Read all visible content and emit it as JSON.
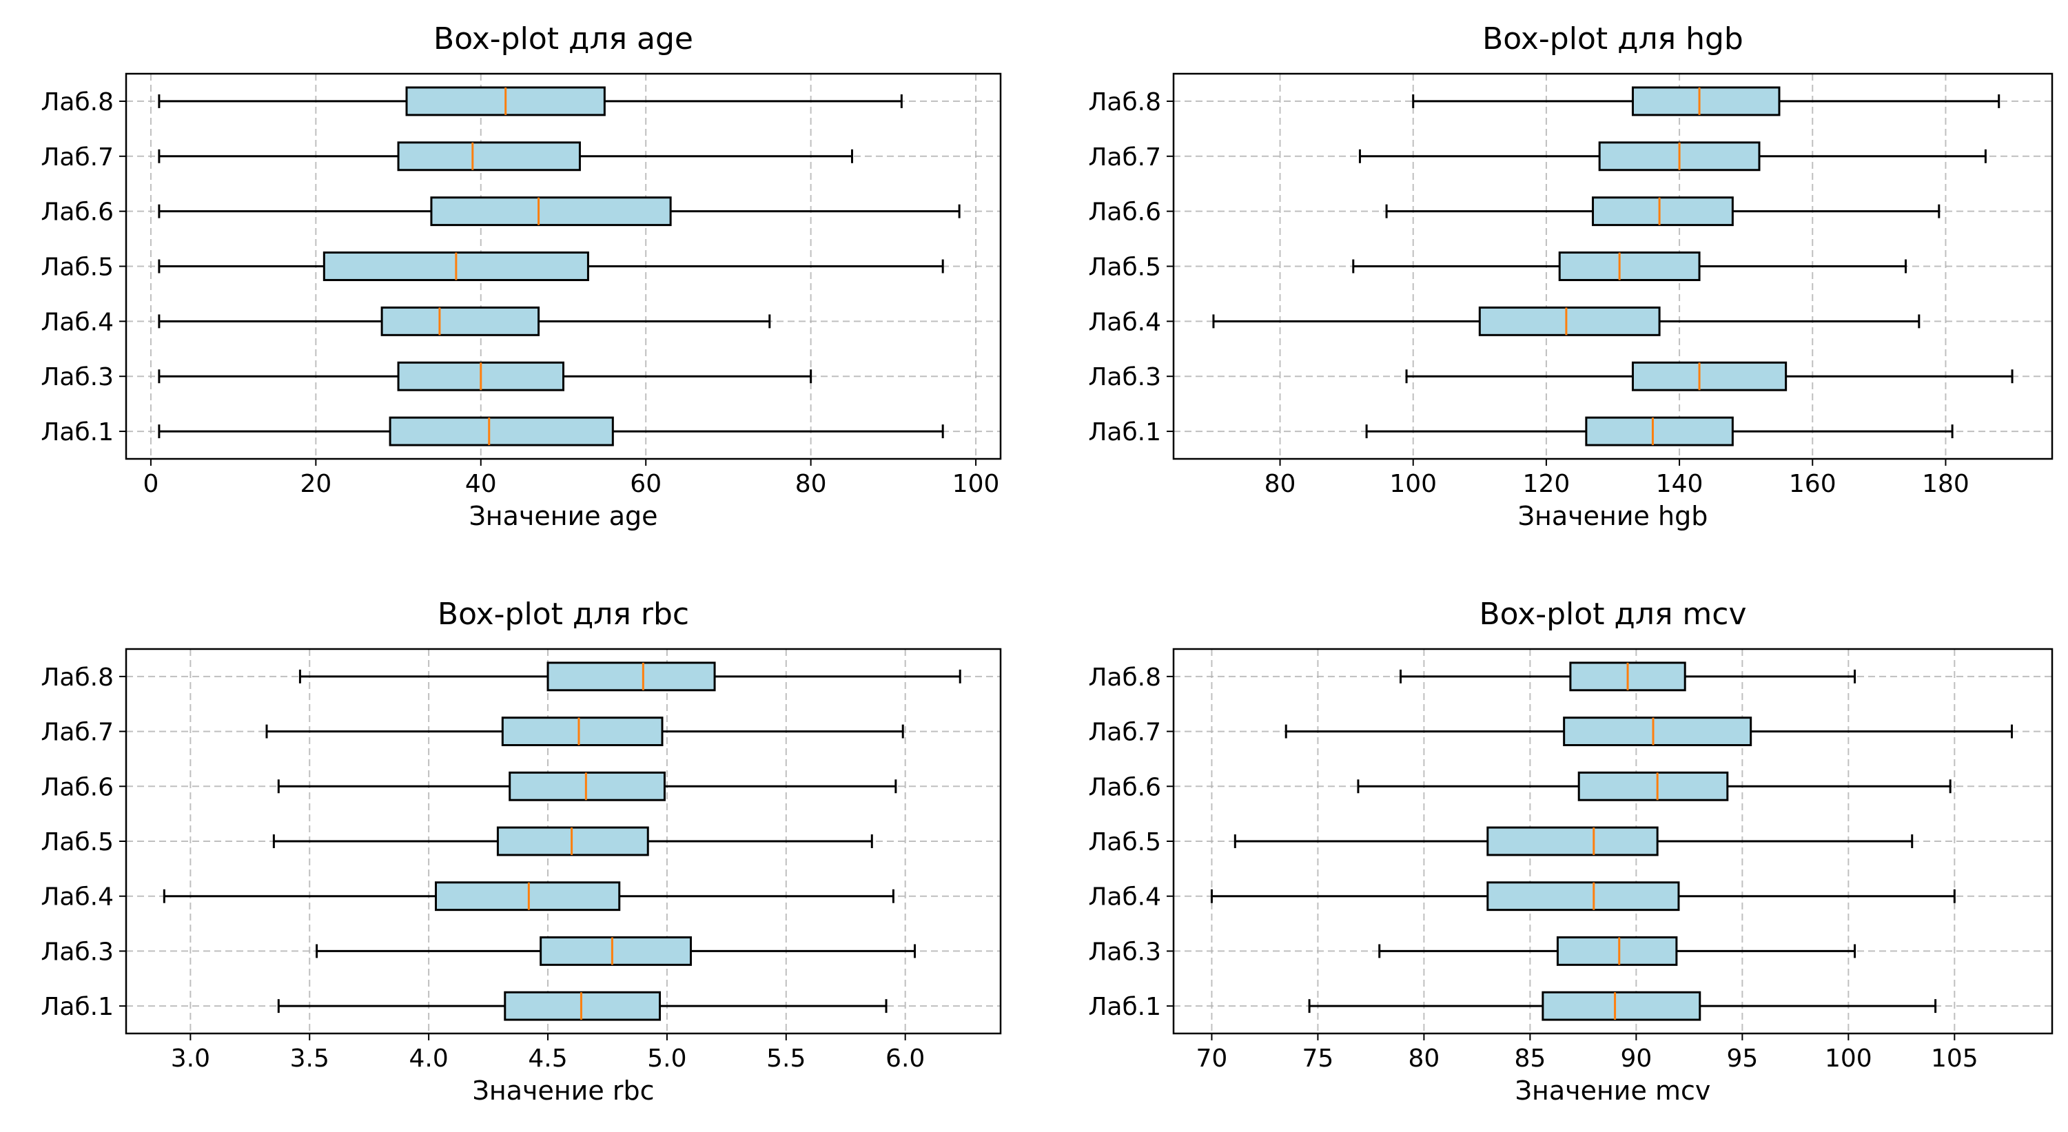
{
  "chart_data": [
    {
      "type": "boxplot",
      "orientation": "horizontal",
      "title": "Box-plot для age",
      "xlabel": "Значение age",
      "xlim": [
        -3,
        103
      ],
      "xticks": [
        0,
        20,
        40,
        60,
        80,
        100
      ],
      "xtick_labels": [
        "0",
        "20",
        "40",
        "60",
        "80",
        "100"
      ],
      "grid": true,
      "categories": [
        "Лаб.1",
        "Лаб.3",
        "Лаб.4",
        "Лаб.5",
        "Лаб.6",
        "Лаб.7",
        "Лаб.8"
      ],
      "boxes": [
        {
          "whisker_low": 1,
          "q1": 29,
          "median": 41,
          "q3": 56,
          "whisker_high": 96
        },
        {
          "whisker_low": 1,
          "q1": 30,
          "median": 40,
          "q3": 50,
          "whisker_high": 80
        },
        {
          "whisker_low": 1,
          "q1": 28,
          "median": 35,
          "q3": 47,
          "whisker_high": 75
        },
        {
          "whisker_low": 1,
          "q1": 21,
          "median": 37,
          "q3": 53,
          "whisker_high": 96
        },
        {
          "whisker_low": 1,
          "q1": 34,
          "median": 47,
          "q3": 63,
          "whisker_high": 98
        },
        {
          "whisker_low": 1,
          "q1": 30,
          "median": 39,
          "q3": 52,
          "whisker_high": 85
        },
        {
          "whisker_low": 1,
          "q1": 31,
          "median": 43,
          "q3": 55,
          "whisker_high": 91
        }
      ]
    },
    {
      "type": "boxplot",
      "orientation": "horizontal",
      "title": "Box-plot для hgb",
      "xlabel": "Значение hgb",
      "xlim": [
        64,
        196
      ],
      "xticks": [
        80,
        100,
        120,
        140,
        160,
        180
      ],
      "xtick_labels": [
        "80",
        "100",
        "120",
        "140",
        "160",
        "180"
      ],
      "grid": true,
      "categories": [
        "Лаб.1",
        "Лаб.3",
        "Лаб.4",
        "Лаб.5",
        "Лаб.6",
        "Лаб.7",
        "Лаб.8"
      ],
      "boxes": [
        {
          "whisker_low": 93,
          "q1": 126,
          "median": 136,
          "q3": 148,
          "whisker_high": 181
        },
        {
          "whisker_low": 99,
          "q1": 133,
          "median": 143,
          "q3": 156,
          "whisker_high": 190
        },
        {
          "whisker_low": 70,
          "q1": 110,
          "median": 123,
          "q3": 137,
          "whisker_high": 176
        },
        {
          "whisker_low": 91,
          "q1": 122,
          "median": 131,
          "q3": 143,
          "whisker_high": 174
        },
        {
          "whisker_low": 96,
          "q1": 127,
          "median": 137,
          "q3": 148,
          "whisker_high": 179
        },
        {
          "whisker_low": 92,
          "q1": 128,
          "median": 140,
          "q3": 152,
          "whisker_high": 186
        },
        {
          "whisker_low": 100,
          "q1": 133,
          "median": 143,
          "q3": 155,
          "whisker_high": 188
        }
      ]
    },
    {
      "type": "boxplot",
      "orientation": "horizontal",
      "title": "Box-plot для rbc",
      "xlabel": "Значение rbc",
      "xlim": [
        2.73,
        6.4
      ],
      "xticks": [
        3.0,
        3.5,
        4.0,
        4.5,
        5.0,
        5.5,
        6.0
      ],
      "xtick_labels": [
        "3.0",
        "3.5",
        "4.0",
        "4.5",
        "5.0",
        "5.5",
        "6.0"
      ],
      "grid": true,
      "categories": [
        "Лаб.1",
        "Лаб.3",
        "Лаб.4",
        "Лаб.5",
        "Лаб.6",
        "Лаб.7",
        "Лаб.8"
      ],
      "boxes": [
        {
          "whisker_low": 3.37,
          "q1": 4.32,
          "median": 4.64,
          "q3": 4.97,
          "whisker_high": 5.92
        },
        {
          "whisker_low": 3.53,
          "q1": 4.47,
          "median": 4.77,
          "q3": 5.1,
          "whisker_high": 6.04
        },
        {
          "whisker_low": 2.89,
          "q1": 4.03,
          "median": 4.42,
          "q3": 4.8,
          "whisker_high": 5.95
        },
        {
          "whisker_low": 3.35,
          "q1": 4.29,
          "median": 4.6,
          "q3": 4.92,
          "whisker_high": 5.86
        },
        {
          "whisker_low": 3.37,
          "q1": 4.34,
          "median": 4.66,
          "q3": 4.99,
          "whisker_high": 5.96
        },
        {
          "whisker_low": 3.32,
          "q1": 4.31,
          "median": 4.63,
          "q3": 4.98,
          "whisker_high": 5.99
        },
        {
          "whisker_low": 3.46,
          "q1": 4.5,
          "median": 4.9,
          "q3": 5.2,
          "whisker_high": 6.23
        }
      ]
    },
    {
      "type": "boxplot",
      "orientation": "horizontal",
      "title": "Box-plot для mcv",
      "xlabel": "Значение mcv",
      "xlim": [
        68.2,
        109.6
      ],
      "xticks": [
        70,
        75,
        80,
        85,
        90,
        95,
        100,
        105
      ],
      "xtick_labels": [
        "70",
        "75",
        "80",
        "85",
        "90",
        "95",
        "100",
        "105"
      ],
      "grid": true,
      "categories": [
        "Лаб.1",
        "Лаб.3",
        "Лаб.4",
        "Лаб.5",
        "Лаб.6",
        "Лаб.7",
        "Лаб.8"
      ],
      "boxes": [
        {
          "whisker_low": 74.6,
          "q1": 85.6,
          "median": 89.0,
          "q3": 93.0,
          "whisker_high": 104.1
        },
        {
          "whisker_low": 77.9,
          "q1": 86.3,
          "median": 89.2,
          "q3": 91.9,
          "whisker_high": 100.3
        },
        {
          "whisker_low": 70.0,
          "q1": 83.0,
          "median": 88.0,
          "q3": 92.0,
          "whisker_high": 105.0
        },
        {
          "whisker_low": 71.1,
          "q1": 83.0,
          "median": 88.0,
          "q3": 91.0,
          "whisker_high": 103.0
        },
        {
          "whisker_low": 76.9,
          "q1": 87.3,
          "median": 91.0,
          "q3": 94.3,
          "whisker_high": 104.8
        },
        {
          "whisker_low": 73.5,
          "q1": 86.6,
          "median": 90.8,
          "q3": 95.4,
          "whisker_high": 107.7
        },
        {
          "whisker_low": 78.9,
          "q1": 86.9,
          "median": 89.6,
          "q3": 92.3,
          "whisker_high": 100.3
        }
      ]
    }
  ],
  "colors": {
    "box_fill": "#add8e6",
    "median": "#ff7f0e",
    "outline": "#000000",
    "grid": "#b0b0b0"
  }
}
